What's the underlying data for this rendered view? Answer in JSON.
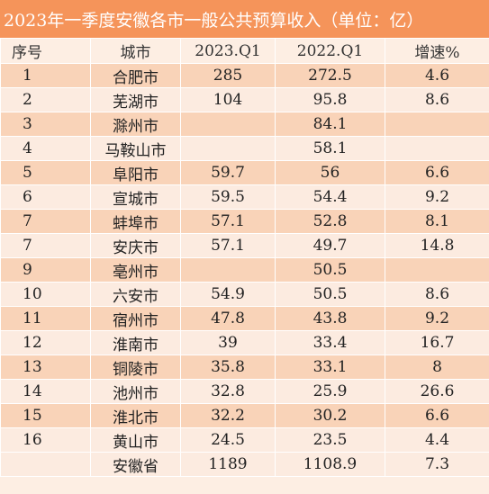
{
  "title": "2023年一季度安徽各市一般公共预算收入（单位：亿）",
  "headers": {
    "index": "序号",
    "city": "城市",
    "q1_2023": "2023.Q1",
    "q1_2022": "2022.Q1",
    "growth": "增速%"
  },
  "rows": [
    {
      "index": "1",
      "city": "合肥市",
      "q1_2023": "285",
      "q1_2022": "272.5",
      "growth": "4.6"
    },
    {
      "index": "2",
      "city": "芜湖市",
      "q1_2023": "104",
      "q1_2022": "95.8",
      "growth": "8.6"
    },
    {
      "index": "3",
      "city": "滁州市",
      "q1_2023": "",
      "q1_2022": "84.1",
      "growth": ""
    },
    {
      "index": "4",
      "city": "马鞍山市",
      "q1_2023": "",
      "q1_2022": "58.1",
      "growth": ""
    },
    {
      "index": "5",
      "city": "阜阳市",
      "q1_2023": "59.7",
      "q1_2022": "56",
      "growth": "6.6"
    },
    {
      "index": "6",
      "city": "宣城市",
      "q1_2023": "59.5",
      "q1_2022": "54.4",
      "growth": "9.2"
    },
    {
      "index": "7",
      "city": "蚌埠市",
      "q1_2023": "57.1",
      "q1_2022": "52.8",
      "growth": "8.1"
    },
    {
      "index": "7",
      "city": "安庆市",
      "q1_2023": "57.1",
      "q1_2022": "49.7",
      "growth": "14.8"
    },
    {
      "index": "9",
      "city": "亳州市",
      "q1_2023": "",
      "q1_2022": "50.5",
      "growth": ""
    },
    {
      "index": "10",
      "city": "六安市",
      "q1_2023": "54.9",
      "q1_2022": "50.5",
      "growth": "8.6"
    },
    {
      "index": "11",
      "city": "宿州市",
      "q1_2023": "47.8",
      "q1_2022": "43.8",
      "growth": "9.2"
    },
    {
      "index": "12",
      "city": "淮南市",
      "q1_2023": "39",
      "q1_2022": "33.4",
      "growth": "16.7"
    },
    {
      "index": "13",
      "city": "铜陵市",
      "q1_2023": "35.8",
      "q1_2022": "33.1",
      "growth": "8"
    },
    {
      "index": "14",
      "city": "池州市",
      "q1_2023": "32.8",
      "q1_2022": "25.9",
      "growth": "26.6"
    },
    {
      "index": "15",
      "city": "淮北市",
      "q1_2023": "32.2",
      "q1_2022": "30.2",
      "growth": "6.6"
    },
    {
      "index": "16",
      "city": "黄山市",
      "q1_2023": "24.5",
      "q1_2022": "23.5",
      "growth": "4.4"
    },
    {
      "index": "",
      "city": "安徽省",
      "q1_2023": "1189",
      "q1_2022": "1108.9",
      "growth": "7.3"
    }
  ],
  "colors": {
    "title_bar": "#f5945a",
    "row_dark": "#f9d3b8",
    "row_light": "#fcebe0",
    "page_bg": "#fdeee3"
  }
}
